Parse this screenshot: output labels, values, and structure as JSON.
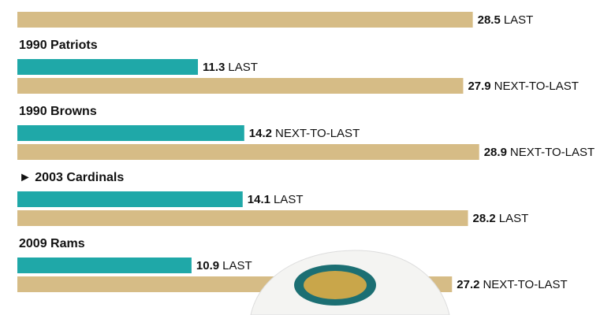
{
  "chart_data": {
    "type": "bar",
    "orientation": "horizontal",
    "categories": [
      null,
      "1990 Patriots",
      "1990 Browns",
      "► 2003 Cardinals",
      "2009 Rams"
    ],
    "xlim": [
      0,
      37.4
    ],
    "series": [
      {
        "color": "#1fa8a8",
        "values": [
          null,
          11.3,
          14.2,
          14.1,
          10.9
        ],
        "ranks": [
          null,
          "LAST",
          "NEXT-TO-LAST",
          "LAST",
          "LAST"
        ]
      },
      {
        "color": "#d6bc86",
        "values": [
          28.5,
          27.9,
          28.9,
          28.2,
          27.2
        ],
        "ranks": [
          "LAST",
          "NEXT-TO-LAST",
          "NEXT-TO-LAST",
          "LAST",
          "NEXT-TO-LAST"
        ]
      }
    ]
  }
}
